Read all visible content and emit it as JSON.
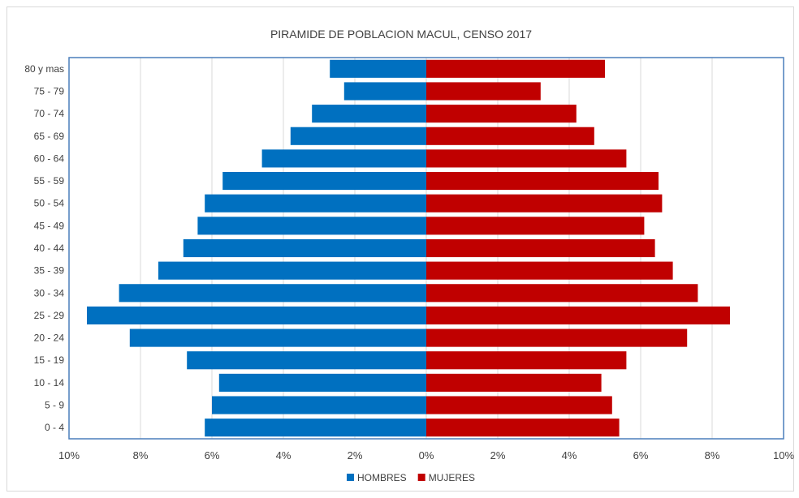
{
  "chart_data": {
    "type": "bar",
    "orientation": "horizontal",
    "title": "PIRAMIDE DE POBLACION MACUL, CENSO 2017",
    "xlabel": "",
    "ylabel": "",
    "xlim": [
      -10,
      10
    ],
    "x_ticks": [
      {
        "value": -10,
        "label": "10%"
      },
      {
        "value": -8,
        "label": "8%"
      },
      {
        "value": -6,
        "label": "6%"
      },
      {
        "value": -4,
        "label": "4%"
      },
      {
        "value": -2,
        "label": "2%"
      },
      {
        "value": 0,
        "label": "0%"
      },
      {
        "value": 2,
        "label": "2%"
      },
      {
        "value": 4,
        "label": "4%"
      },
      {
        "value": 6,
        "label": "6%"
      },
      {
        "value": 8,
        "label": "8%"
      },
      {
        "value": 10,
        "label": "10%"
      }
    ],
    "grid": true,
    "legend_position": "bottom",
    "categories": [
      "80 y mas",
      "75 - 79",
      "70 - 74",
      "65 - 69",
      "60 - 64",
      "55 - 59",
      "50 - 54",
      "45 - 49",
      "40 - 44",
      "35 - 39",
      "30 - 34",
      "25 - 29",
      "20 - 24",
      "15 - 19",
      "10 - 14",
      "5 - 9",
      "0 - 4"
    ],
    "series": [
      {
        "name": "HOMBRES",
        "color": "#0070c0",
        "values": [
          2.7,
          2.3,
          3.2,
          3.8,
          4.6,
          5.7,
          6.2,
          6.4,
          6.8,
          7.5,
          8.6,
          9.5,
          8.3,
          6.7,
          5.8,
          6.0,
          6.2
        ]
      },
      {
        "name": "MUJERES",
        "color": "#c00000",
        "values": [
          5.0,
          3.2,
          4.2,
          4.7,
          5.6,
          6.5,
          6.6,
          6.1,
          6.4,
          6.9,
          7.6,
          8.5,
          7.3,
          5.6,
          4.9,
          5.2,
          5.4
        ]
      }
    ]
  }
}
